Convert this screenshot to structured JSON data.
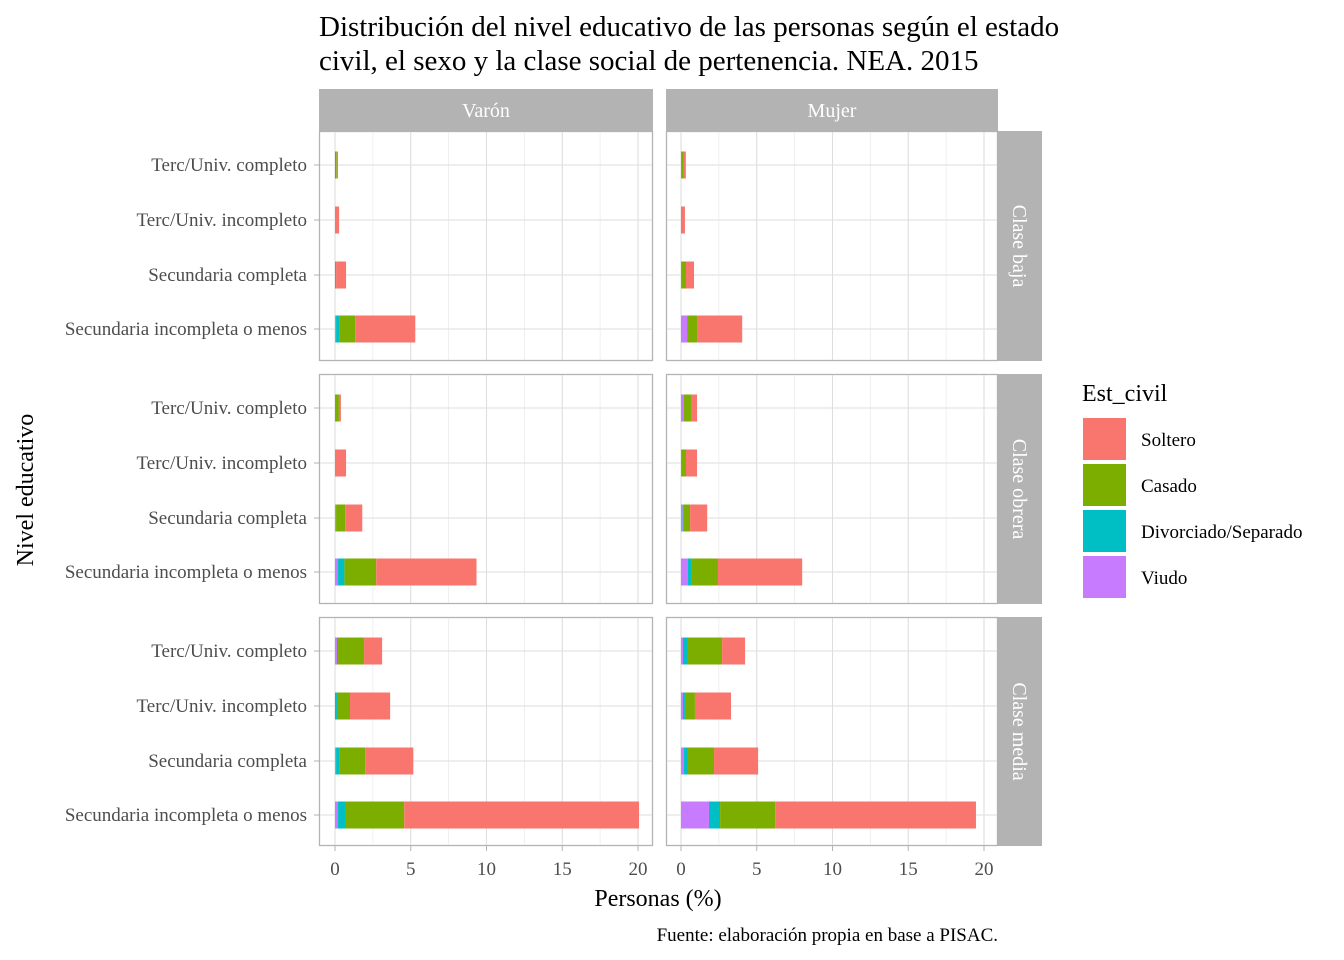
{
  "chart_data": {
    "type": "bar",
    "orientation": "horizontal-stacked",
    "title": [
      "Distribución del nivel educativo de las personas según el estado",
      "civil, el sexo y la clase social de pertenencia. NEA. 2015"
    ],
    "xlabel": "Personas (%)",
    "ylabel": "Nivel educativo",
    "caption": "Fuente: elaboración propia en base a PISAC.",
    "xlim": [
      0,
      20
    ],
    "xticks": [
      0,
      5,
      10,
      15,
      20
    ],
    "grid": true,
    "legend": {
      "title": "Est_civil",
      "placement": "right"
    },
    "series": [
      {
        "name": "Soltero",
        "color": "#F8766D"
      },
      {
        "name": "Casado",
        "color": "#7CAE00"
      },
      {
        "name": "Divorciado/Separado",
        "color": "#00BFC4"
      },
      {
        "name": "Viudo",
        "color": "#C77CFF"
      }
    ],
    "stack_order": [
      "Viudo",
      "Divorciado/Separado",
      "Casado",
      "Soltero"
    ],
    "categories": [
      "Terc/Univ. completo",
      "Terc/Univ. incompleto",
      "Secundaria completa",
      "Secundaria incompleta o menos"
    ],
    "col_facets": [
      "Varón",
      "Mujer"
    ],
    "row_facets": [
      "Clase baja",
      "Clase obrera",
      "Clase media"
    ],
    "panels": [
      {
        "sexo": "Varón",
        "clase": "Clase baja",
        "values": {
          "Viudo": [
            0,
            0,
            0,
            0.07
          ],
          "Divorciado/Separado": [
            0.07,
            0,
            0,
            0.2
          ],
          "Casado": [
            0.05,
            0,
            0.07,
            1.06
          ],
          "Soltero": [
            0.08,
            0.27,
            0.66,
            3.97
          ]
        }
      },
      {
        "sexo": "Mujer",
        "clase": "Clase baja",
        "values": {
          "Viudo": [
            0,
            0,
            0,
            0.4
          ],
          "Divorciado/Separado": [
            0.04,
            0,
            0.04,
            0
          ],
          "Casado": [
            0.15,
            0.04,
            0.29,
            0.66
          ],
          "Soltero": [
            0.13,
            0.22,
            0.53,
            2.98
          ]
        }
      },
      {
        "sexo": "Varón",
        "clase": "Clase obrera",
        "values": {
          "Viudo": [
            0,
            0,
            0.07,
            0.2
          ],
          "Divorciado/Separado": [
            0,
            0,
            0,
            0.42
          ],
          "Casado": [
            0.26,
            0,
            0.6,
            2.1
          ],
          "Soltero": [
            0.13,
            0.73,
            1.13,
            6.62
          ]
        }
      },
      {
        "sexo": "Mujer",
        "clase": "Clase obrera",
        "values": {
          "Viudo": [
            0.2,
            0,
            0.11,
            0.46
          ],
          "Divorciado/Separado": [
            0,
            0.04,
            0.07,
            0.26
          ],
          "Casado": [
            0.46,
            0.29,
            0.42,
            1.72
          ],
          "Soltero": [
            0.4,
            0.73,
            1.13,
            5.56
          ]
        }
      },
      {
        "sexo": "Varón",
        "clase": "Clase media",
        "values": {
          "Viudo": [
            0.13,
            0,
            0.07,
            0.2
          ],
          "Divorciado/Separado": [
            0.07,
            0.13,
            0.2,
            0.46
          ],
          "Casado": [
            1.72,
            0.86,
            1.72,
            3.91
          ],
          "Soltero": [
            1.19,
            2.65,
            3.18,
            15.5
          ]
        }
      },
      {
        "sexo": "Mujer",
        "clase": "Clase media",
        "values": {
          "Viudo": [
            0.13,
            0.13,
            0.2,
            1.85
          ],
          "Divorciado/Separado": [
            0.33,
            0.13,
            0.26,
            0.73
          ],
          "Casado": [
            2.25,
            0.66,
            1.72,
            3.64
          ],
          "Soltero": [
            1.52,
            2.38,
            2.91,
            13.25
          ]
        }
      }
    ]
  }
}
